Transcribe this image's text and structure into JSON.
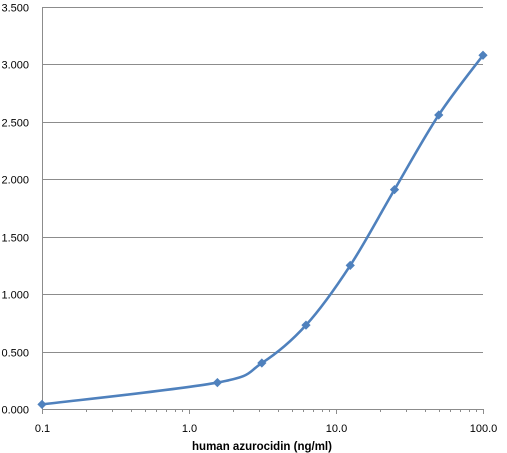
{
  "chart_data": {
    "type": "line",
    "title": "",
    "xlabel": "human azurocidin (ng/ml)",
    "ylabel": "",
    "x_scale": "log",
    "xlim": [
      0.1,
      100.0
    ],
    "ylim": [
      0.0,
      3.5
    ],
    "x_ticks": [
      "0.1",
      "1.0",
      "10.0",
      "100.0"
    ],
    "x_tick_values": [
      0.1,
      1.0,
      10.0,
      100.0
    ],
    "y_ticks": [
      "0.000",
      "0.500",
      "1.000",
      "1.500",
      "2.000",
      "2.500",
      "3.000",
      "3.500"
    ],
    "y_tick_values": [
      0.0,
      0.5,
      1.0,
      1.5,
      2.0,
      2.5,
      3.0,
      3.5
    ],
    "grid": "horizontal",
    "legend": "none",
    "marker": "diamond",
    "series": [
      {
        "x": [
          0.1,
          1.56,
          3.13,
          6.25,
          12.5,
          25.0,
          50.0,
          100.0
        ],
        "y": [
          0.04,
          0.23,
          0.4,
          0.73,
          1.25,
          1.91,
          2.56,
          3.08
        ],
        "color": "#4f81bd"
      }
    ]
  }
}
